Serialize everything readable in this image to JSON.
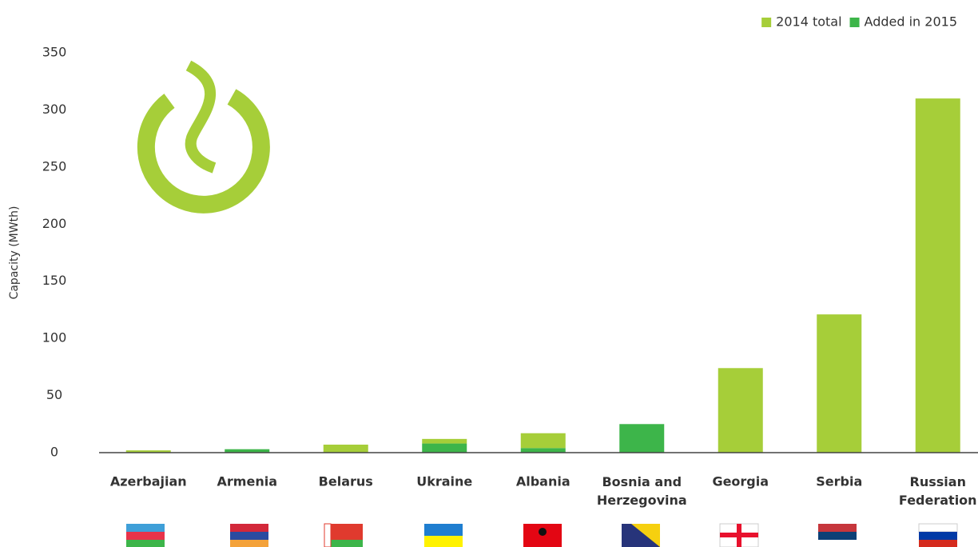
{
  "chart_data": {
    "type": "bar",
    "stacked": true,
    "y_label": "Capacity (MWth)",
    "categories": [
      "Azerbajian",
      "Armenia",
      "Belarus",
      "Ukraine",
      "Albania",
      "Bosnia and\nHerzegovina",
      "Georgia",
      "Serbia",
      "Russian\nFederation"
    ],
    "series": [
      {
        "name": "2014 total",
        "color": "#a6ce39",
        "values": [
          2,
          0,
          7,
          4,
          13,
          0,
          74,
          121,
          310
        ]
      },
      {
        "name": "Added in 2015",
        "color": "#3db54a",
        "values": [
          0,
          3,
          0,
          8,
          4,
          25,
          0,
          0,
          0
        ]
      }
    ],
    "ylim": [
      0,
      350
    ],
    "yticks": [
      0,
      50,
      100,
      150,
      200,
      250,
      300,
      350
    ],
    "grid": false,
    "legend": "top-right"
  }
}
